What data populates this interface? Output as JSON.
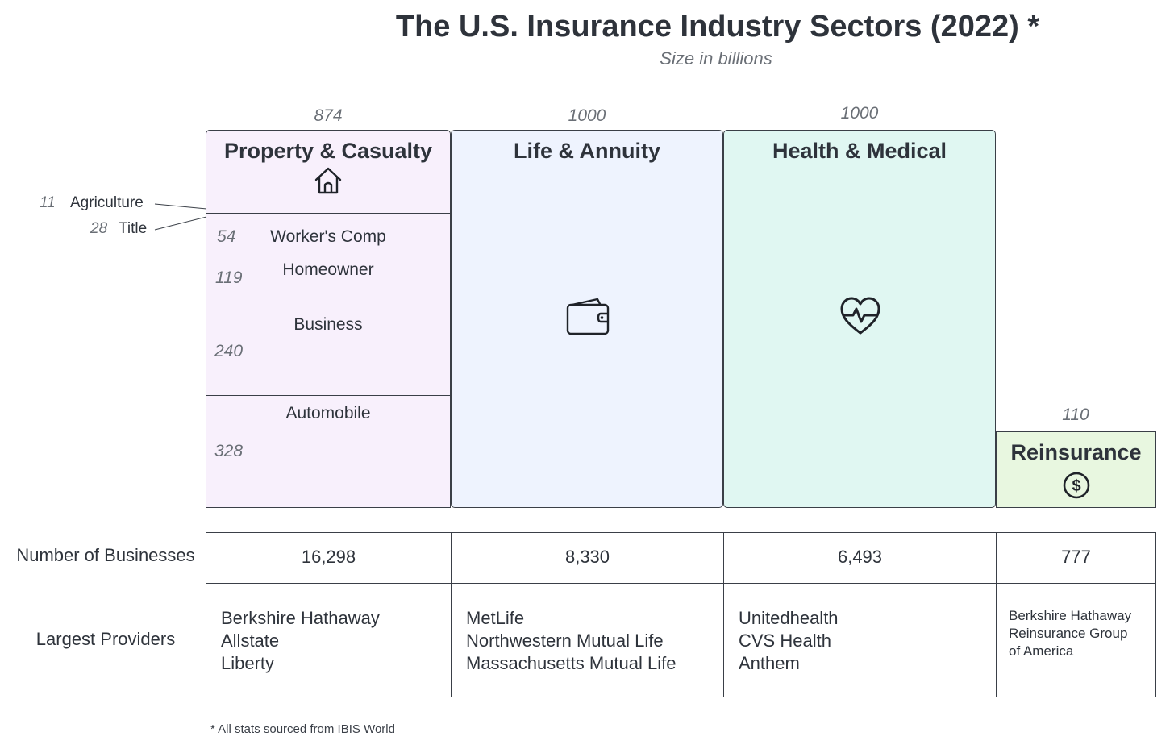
{
  "title": "The U.S. Insurance Industry Sectors (2022) *",
  "subtitle": "Size in billions",
  "sectors": [
    {
      "name": "Property & Casualty",
      "size": "874",
      "icon": "house-icon",
      "color": "#f8f0fc",
      "subsectors": [
        {
          "name": "Agriculture",
          "value": "11"
        },
        {
          "name": "Title",
          "value": "28"
        },
        {
          "name": "Worker's Comp",
          "value": "54"
        },
        {
          "name": "Homeowner",
          "value": "119"
        },
        {
          "name": "Business",
          "value": "240"
        },
        {
          "name": "Automobile",
          "value": "328"
        }
      ]
    },
    {
      "name": "Life & Annuity",
      "size": "1000",
      "icon": "wallet-icon",
      "color": "#eef3fe"
    },
    {
      "name": "Health & Medical",
      "size": "1000",
      "icon": "heartbeat-icon",
      "color": "#e0f7f2"
    },
    {
      "name": "Reinsurance",
      "size": "110",
      "icon": "dollar-coin-icon",
      "color": "#e8f7e0"
    }
  ],
  "table": {
    "businesses_label": "Number of Businesses",
    "providers_label": "Largest Providers",
    "businesses": [
      "16,298",
      "8,330",
      "6,493",
      "777"
    ],
    "providers": [
      [
        "Berkshire Hathaway",
        "Allstate",
        "Liberty"
      ],
      [
        "MetLife",
        "Northwestern Mutual Life",
        "Massachusetts Mutual Life"
      ],
      [
        "Unitedhealth",
        "CVS Health",
        "Anthem"
      ],
      [
        "Berkshire Hathaway",
        "Reinsurance Group",
        "of America"
      ]
    ]
  },
  "footnote": "* All stats sourced from IBIS World"
}
